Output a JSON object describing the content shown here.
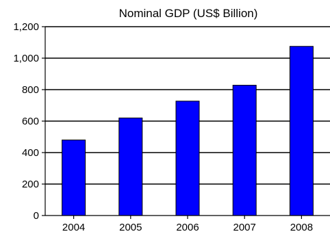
{
  "chart_data": {
    "type": "bar",
    "title": "Nominal GDP (US$ Billion)",
    "categories": [
      "2004",
      "2005",
      "2006",
      "2007",
      "2008"
    ],
    "values": [
      480,
      620,
      727,
      828,
      1075
    ],
    "ylim": [
      0,
      1200
    ],
    "yticks": [
      0,
      200,
      400,
      600,
      800,
      1000,
      1200
    ],
    "ytick_labels": [
      "0",
      "200",
      "400",
      "600",
      "800",
      "1,000",
      "1,200"
    ],
    "grid": true,
    "legend": "none",
    "colors": {
      "bar_fill": "#0000ff",
      "bar_stroke": "#000000",
      "grid": "#000000",
      "axis": "#000000"
    }
  }
}
